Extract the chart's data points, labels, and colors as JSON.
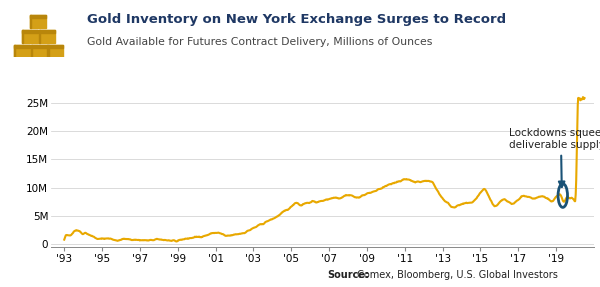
{
  "title": "Gold Inventory on New York Exchange Surges to Record",
  "subtitle": "Gold Available for Futures Contract Delivery, Millions of Ounces",
  "source_label": "Source:",
  "source_rest": " Comex, Bloomberg, U.S. Global Investors",
  "line_color": "#E8A800",
  "line_width": 1.5,
  "title_color": "#1F3864",
  "subtitle_color": "#444444",
  "background_color": "#FFFFFF",
  "annotation_text": "Lockdowns squeeze\ndeliverable supply",
  "annotation_color": "#1A5276",
  "x_tick_labels": [
    "'93",
    "'95",
    "'97",
    "'99",
    "'01",
    "'03",
    "'05",
    "'07",
    "'09",
    "'11",
    "'13",
    "'15",
    "'17",
    "'19"
  ],
  "x_tick_positions": [
    1993,
    1995,
    1997,
    1999,
    2001,
    2003,
    2005,
    2007,
    2009,
    2011,
    2013,
    2015,
    2017,
    2019
  ],
  "y_tick_labels": [
    "0",
    "5M",
    "10M",
    "15M",
    "20M",
    "25M"
  ],
  "y_tick_values": [
    0,
    5000000,
    10000000,
    15000000,
    20000000,
    25000000
  ],
  "ylim": [
    -500000,
    27000000
  ],
  "xlim": [
    1992.3,
    2021.0
  ],
  "figsize": [
    6.0,
    2.87
  ],
  "dpi": 100
}
